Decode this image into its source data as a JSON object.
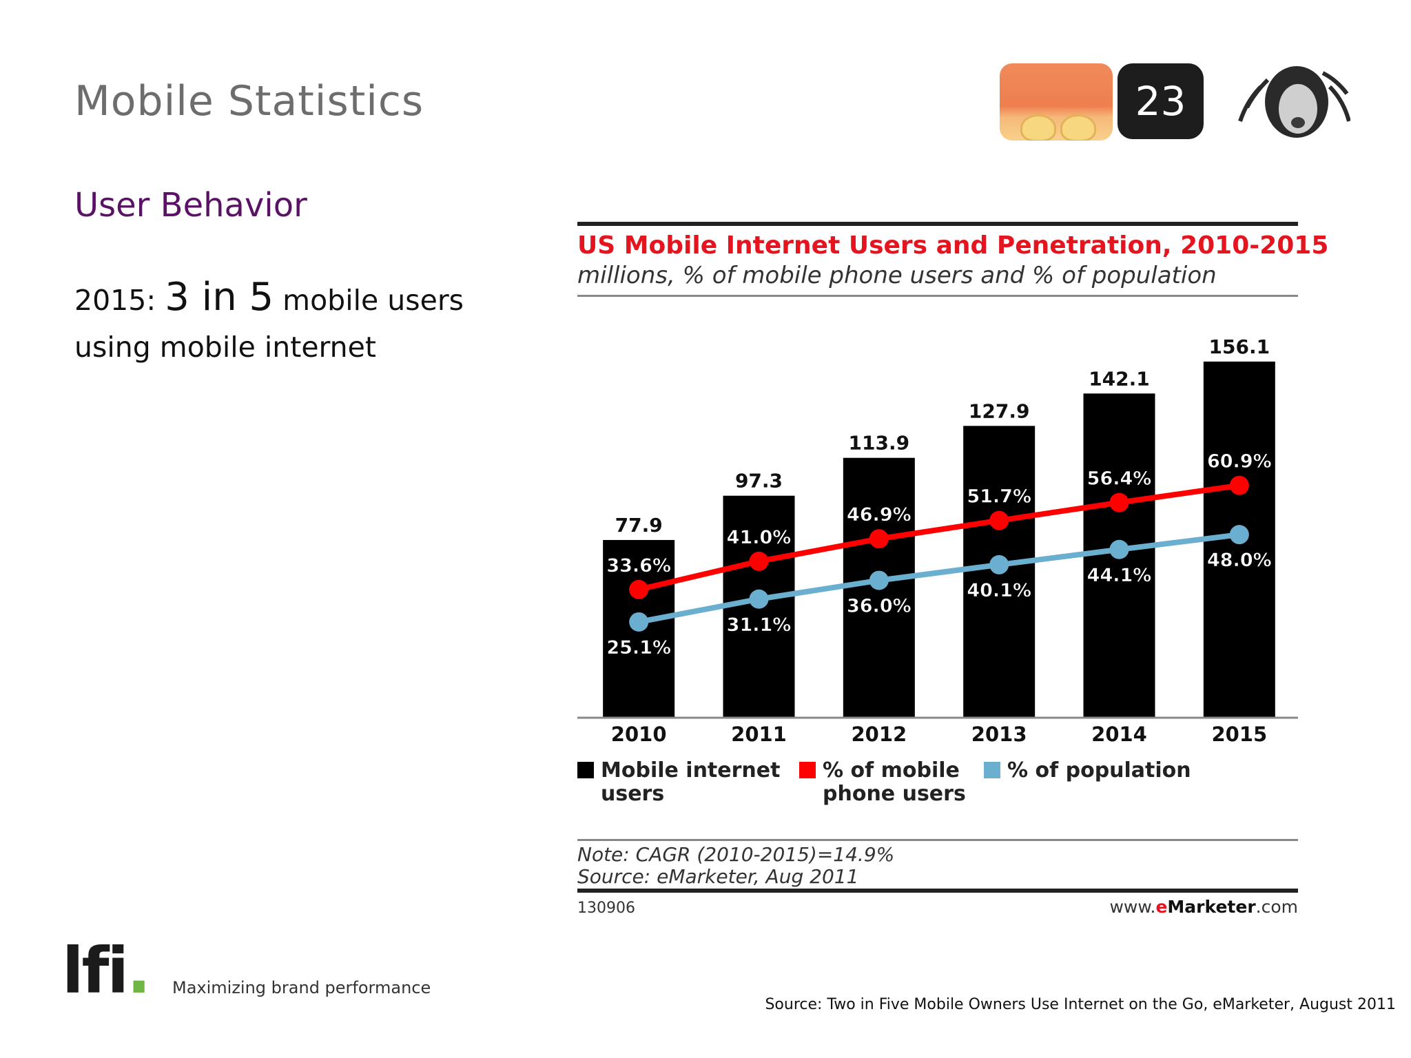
{
  "slide": {
    "title": "Mobile Statistics",
    "section_heading": "User Behavior",
    "stat_prefix": "2015: ",
    "stat_emphasis": "3 in 5",
    "stat_suffix": " mobile users",
    "stat_line2": "using mobile internet",
    "page_number": "23"
  },
  "chart_data": {
    "type": "bar",
    "title": "US Mobile Internet Users and Penetration, 2010-2015",
    "subtitle": "millions, % of mobile phone users and % of population",
    "categories": [
      "2010",
      "2011",
      "2012",
      "2013",
      "2014",
      "2015"
    ],
    "series": [
      {
        "name": "Mobile internet users",
        "type": "bar",
        "values": [
          77.9,
          97.3,
          113.9,
          127.9,
          142.1,
          156.1
        ],
        "labels": [
          "77.9",
          "97.3",
          "113.9",
          "127.9",
          "142.1",
          "156.1"
        ],
        "color": "#000000"
      },
      {
        "name": "% of mobile phone users",
        "type": "line",
        "values": [
          33.6,
          41.0,
          46.9,
          51.7,
          56.4,
          60.9
        ],
        "labels": [
          "33.6%",
          "41.0%",
          "46.9%",
          "51.7%",
          "56.4%",
          "60.9%"
        ],
        "color": "#ff0000"
      },
      {
        "name": "% of population",
        "type": "line",
        "values": [
          25.1,
          31.1,
          36.0,
          40.1,
          44.1,
          48.0
        ],
        "labels": [
          "25.1%",
          "31.1%",
          "36.0%",
          "40.1%",
          "44.1%",
          "48.0%"
        ],
        "color": "#6aaed0"
      }
    ],
    "ylim_bars": [
      0,
      160
    ],
    "ylim_percent": [
      0,
      100
    ],
    "legend": [
      {
        "line1": "Mobile internet",
        "line2": "users",
        "color": "#000000"
      },
      {
        "line1": "% of mobile",
        "line2": "phone users",
        "color": "#ff0000"
      },
      {
        "line1": "% of population",
        "line2": "",
        "color": "#6aaed0"
      }
    ],
    "note": "Note: CAGR (2010-2015)=14.9%",
    "source": "Source: eMarketer, Aug 2011",
    "chart_id": "130906",
    "url_prefix": "www.",
    "url_e": "e",
    "url_brand": "Marketer",
    "url_suffix": ".com"
  },
  "footer": {
    "logo_text": "lfi",
    "logo_dot": ".",
    "tagline": "Maximizing brand performance",
    "source": "Source: Two in Five Mobile Owners Use Internet on the Go, eMarketer, August 2011"
  }
}
